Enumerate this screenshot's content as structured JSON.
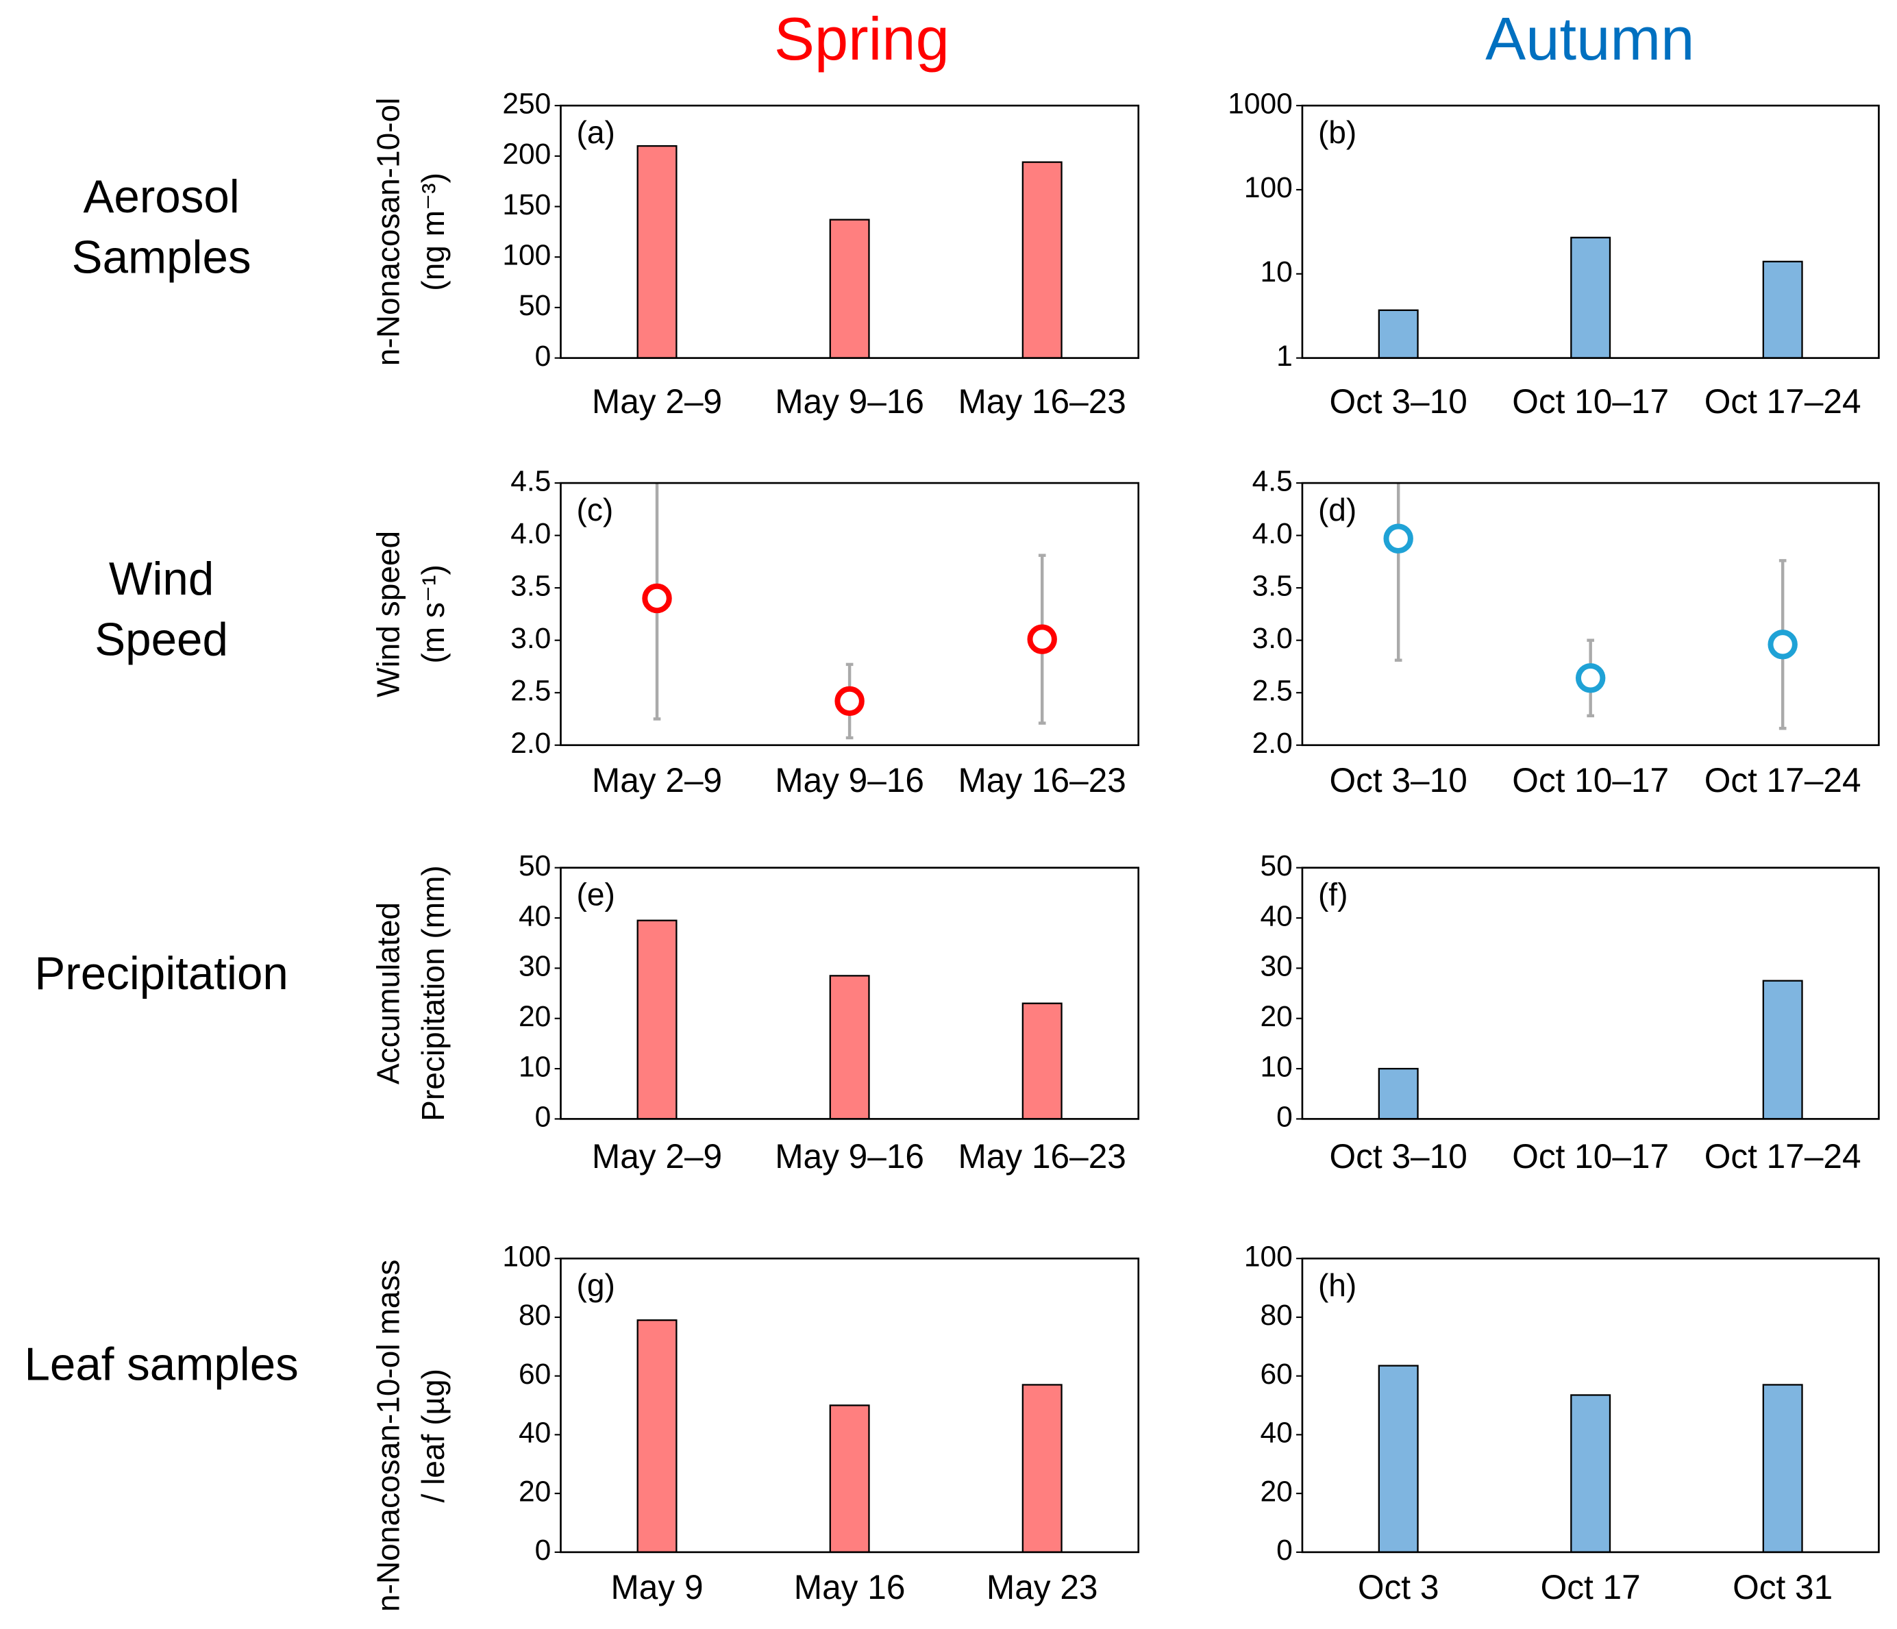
{
  "column_titles": [
    {
      "text": "Spring",
      "color": "#ff0000"
    },
    {
      "text": "Autumn",
      "color": "#0070c0"
    }
  ],
  "row_labels": [
    [
      "Aerosol",
      "Samples"
    ],
    [
      "Wind",
      "Speed"
    ],
    [
      "Precipitation"
    ],
    [
      "Leaf samples"
    ]
  ],
  "chart_data": [
    {
      "type": "bar",
      "panel_label": "(a)",
      "ylabel": [
        "n-Nonacosan-10-ol",
        "(ng m⁻³)"
      ],
      "categories": [
        "May 2–9",
        "May 9–16",
        "May 16–23"
      ],
      "values": [
        210,
        137,
        194
      ],
      "color": "#ff7f7f",
      "ylim": [
        0,
        250
      ],
      "yticks": [
        0,
        50,
        100,
        150,
        200,
        250
      ]
    },
    {
      "type": "bar",
      "panel_label": "(b)",
      "categories": [
        "Oct 3–10",
        "Oct 10–17",
        "Oct 17–24"
      ],
      "values": [
        3.7,
        27,
        14
      ],
      "color": "#7fb5e0",
      "yscale": "log",
      "ylim": [
        1,
        1000
      ],
      "yticks": [
        1,
        10,
        100,
        1000
      ]
    },
    {
      "type": "scatter",
      "panel_label": "(c)",
      "ylabel": [
        "Wind speed",
        "(m s⁻¹)"
      ],
      "categories": [
        "May 2–9",
        "May 9–16",
        "May 16–23"
      ],
      "values": [
        3.4,
        2.42,
        3.01
      ],
      "errors": [
        1.15,
        0.35,
        0.8
      ],
      "color": "#ff0000",
      "error_color": "#aaaaaa",
      "ylim": [
        2,
        4.5
      ],
      "yticks": [
        {
          "value": 2,
          "label": "2.0"
        },
        2.5,
        {
          "value": 3,
          "label": "3.0"
        },
        3.5,
        {
          "value": 4,
          "label": "4.0"
        },
        4.5
      ]
    },
    {
      "type": "scatter",
      "panel_label": "(d)",
      "categories": [
        "Oct 3–10",
        "Oct 10–17",
        "Oct 17–24"
      ],
      "values": [
        3.97,
        2.64,
        2.96
      ],
      "errors": [
        1.16,
        0.36,
        0.8
      ],
      "color": "#1fa2d6",
      "error_color": "#aaaaaa",
      "ylim": [
        2,
        4.5
      ],
      "yticks": [
        {
          "value": 2,
          "label": "2.0"
        },
        2.5,
        {
          "value": 3,
          "label": "3.0"
        },
        3.5,
        {
          "value": 4,
          "label": "4.0"
        },
        4.5
      ]
    },
    {
      "type": "bar",
      "panel_label": "(e)",
      "ylabel": [
        "Accumulated",
        "Precipitation (mm)"
      ],
      "categories": [
        "May 2–9",
        "May 9–16",
        "May 16–23"
      ],
      "values": [
        39.5,
        28.5,
        23
      ],
      "color": "#ff7f7f",
      "ylim": [
        0,
        50
      ],
      "yticks": [
        0,
        10,
        20,
        30,
        40,
        50
      ]
    },
    {
      "type": "bar",
      "panel_label": "(f)",
      "categories": [
        "Oct 3–10",
        "Oct 10–17",
        "Oct 17–24"
      ],
      "values": [
        10,
        0,
        27.5
      ],
      "color": "#7fb5e0",
      "ylim": [
        0,
        50
      ],
      "yticks": [
        0,
        10,
        20,
        30,
        40,
        50
      ]
    },
    {
      "type": "bar",
      "panel_label": "(g)",
      "ylabel": [
        "n-Nonacosan-10-ol mass",
        "/ leaf (µg)"
      ],
      "categories": [
        "May 9",
        "May 16",
        "May 23"
      ],
      "values": [
        79,
        50,
        57
      ],
      "color": "#ff7f7f",
      "ylim": [
        0,
        100
      ],
      "yticks": [
        0,
        20,
        40,
        60,
        80,
        100
      ]
    },
    {
      "type": "bar",
      "panel_label": "(h)",
      "categories": [
        "Oct 3",
        "Oct 17",
        "Oct 31"
      ],
      "values": [
        63.5,
        53.5,
        57
      ],
      "color": "#7fb5e0",
      "ylim": [
        0,
        100
      ],
      "yticks": [
        0,
        20,
        40,
        60,
        80,
        100
      ]
    }
  ]
}
